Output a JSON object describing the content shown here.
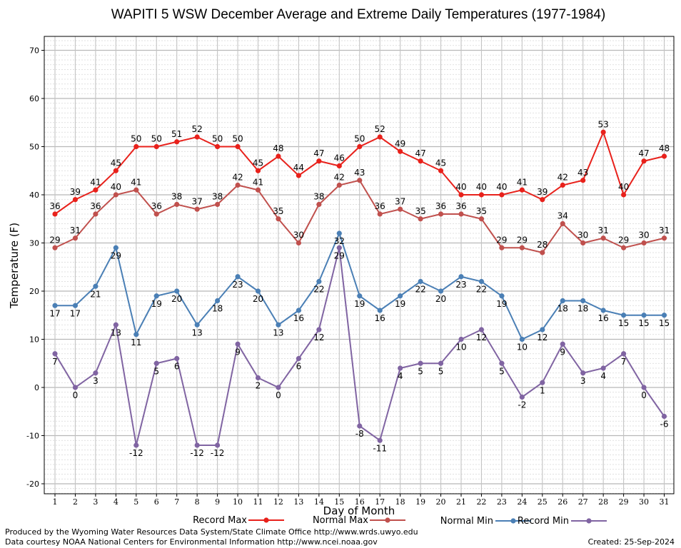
{
  "chart_data": {
    "type": "line",
    "title": "WAPITI 5 WSW December Average and Extreme Daily Temperatures (1977-1984)",
    "xlabel": "Day of Month",
    "ylabel": "Temperature (F)",
    "ylim": [
      -22,
      73
    ],
    "yticks": [
      -20,
      -10,
      0,
      10,
      20,
      30,
      40,
      50,
      60,
      70
    ],
    "grid": true,
    "legend_placement": "bottom",
    "x": [
      1,
      2,
      3,
      4,
      5,
      6,
      7,
      8,
      9,
      10,
      11,
      12,
      13,
      14,
      15,
      16,
      17,
      18,
      19,
      20,
      21,
      22,
      23,
      24,
      25,
      26,
      27,
      28,
      29,
      30,
      31
    ],
    "series": [
      {
        "name": "Record Max",
        "color": "#e8211b",
        "label_position": "above",
        "values": [
          36,
          39,
          41,
          45,
          50,
          50,
          51,
          52,
          50,
          50,
          45,
          48,
          44,
          47,
          46,
          50,
          52,
          49,
          47,
          45,
          40,
          40,
          40,
          41,
          39,
          42,
          43,
          53,
          40,
          47,
          48
        ]
      },
      {
        "name": "Normal Max",
        "color": "#c0504d",
        "label_position": "above",
        "values": [
          29,
          31,
          36,
          40,
          41,
          36,
          38,
          37,
          38,
          42,
          41,
          35,
          30,
          38,
          42,
          43,
          36,
          37,
          35,
          36,
          36,
          35,
          29,
          29,
          28,
          34,
          30,
          31,
          29,
          30,
          31
        ]
      },
      {
        "name": "Normal Min",
        "color": "#4a7fb5",
        "label_position": "below",
        "values": [
          17,
          17,
          21,
          29,
          11,
          19,
          20,
          13,
          18,
          23,
          20,
          13,
          16,
          22,
          32,
          19,
          16,
          19,
          22,
          20,
          23,
          22,
          19,
          10,
          12,
          18,
          18,
          16,
          15,
          15,
          15
        ]
      },
      {
        "name": "Record Min",
        "color": "#8064a2",
        "label_position": "below",
        "values": [
          7,
          0,
          3,
          13,
          -12,
          5,
          6,
          -12,
          -12,
          9,
          2,
          0,
          6,
          12,
          29,
          -8,
          -11,
          4,
          5,
          5,
          10,
          12,
          5,
          -2,
          1,
          9,
          3,
          4,
          7,
          0,
          -6
        ]
      }
    ]
  },
  "footer": {
    "produced_by": "Produced by the Wyoming Water Resources Data System/State Climate Office http://www.wrds.uwyo.edu",
    "data_courtesy": "Data courtesy NOAA National Centers for Environmental Information http://www.ncei.noaa.gov",
    "created": "Created:  25-Sep-2024"
  }
}
